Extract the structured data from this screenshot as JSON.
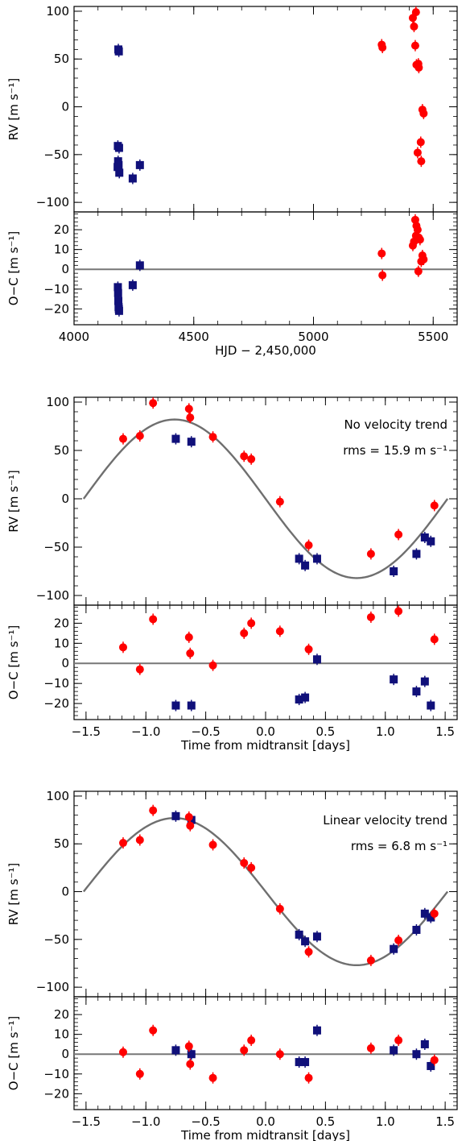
{
  "chart_data": [
    {
      "type": "scatter",
      "panel": "rv",
      "xlim": [
        4000,
        5600
      ],
      "ylim": [
        -110,
        105
      ],
      "yticks": [
        -100,
        -50,
        0,
        50,
        100
      ],
      "ylabel": "RV [m s⁻¹]",
      "annotations": [],
      "fit_curve": false,
      "series": [
        {
          "color": "#10107a",
          "marker": "square",
          "x": [
            4185,
            4187,
            4183,
            4188,
            4184,
            4186,
            4182,
            4189,
            4245,
            4275
          ],
          "y": [
            60,
            58,
            -41,
            -43,
            -57,
            -61,
            -63,
            -69,
            -75,
            -61
          ]
        },
        {
          "color": "#ff0000",
          "marker": "circle",
          "x": [
            5285,
            5288,
            5415,
            5428,
            5420,
            5425,
            5430,
            5440,
            5455,
            5460,
            5448,
            5435,
            5450,
            5438
          ],
          "y": [
            65,
            62,
            93,
            99,
            84,
            64,
            44,
            41,
            -3,
            -7,
            -37,
            -48,
            -57,
            45
          ]
        }
      ]
    },
    {
      "type": "scatter",
      "panel": "residuals",
      "xlim": [
        4000,
        5600
      ],
      "ylim": [
        -28,
        29
      ],
      "xticks": [
        4000,
        4500,
        5000,
        5500
      ],
      "yticks": [
        -20,
        -10,
        0,
        10,
        20
      ],
      "xlabel": "HJD − 2,450,000",
      "ylabel": "O−C [m s⁻¹]",
      "series": [
        {
          "color": "#10107a",
          "marker": "square",
          "x": [
            4183,
            4184,
            4185,
            4186,
            4187,
            4188,
            4245,
            4275
          ],
          "y": [
            -9,
            -12,
            -16,
            -19,
            -20,
            -21,
            -8,
            2
          ]
        },
        {
          "color": "#ff0000",
          "marker": "circle",
          "x": [
            5285,
            5288,
            5415,
            5420,
            5425,
            5428,
            5430,
            5435,
            5440,
            5445,
            5450,
            5455,
            5460,
            5438
          ],
          "y": [
            8,
            -3,
            12,
            14,
            25,
            17,
            22,
            20,
            16,
            15,
            4,
            7,
            5,
            -1
          ]
        }
      ]
    },
    {
      "type": "scatter",
      "panel": "rv",
      "xlim": [
        -1.6,
        1.6
      ],
      "ylim": [
        -110,
        105
      ],
      "yticks": [
        -100,
        -50,
        0,
        50,
        100
      ],
      "ylabel": "RV [m s⁻¹]",
      "annotations": [
        "No velocity trend",
        "rms = 15.9 m s⁻¹"
      ],
      "fit_curve": true,
      "fit_amplitude": 82,
      "fit_period": 3.04,
      "series": [
        {
          "color": "#10107a",
          "marker": "square",
          "x": [
            -0.75,
            -0.62,
            0.28,
            0.33,
            0.43,
            1.07,
            1.26,
            1.33,
            1.38
          ],
          "y": [
            62,
            59,
            -62,
            -69,
            -62,
            -75,
            -57,
            -40,
            -44
          ]
        },
        {
          "color": "#ff0000",
          "marker": "circle",
          "x": [
            -1.19,
            -1.05,
            -0.94,
            -0.64,
            -0.63,
            -0.44,
            -0.18,
            -0.12,
            0.12,
            0.36,
            0.88,
            1.11,
            1.41
          ],
          "y": [
            62,
            65,
            99,
            93,
            84,
            64,
            44,
            41,
            -3,
            -48,
            -57,
            -37,
            -7
          ]
        }
      ]
    },
    {
      "type": "scatter",
      "panel": "residuals",
      "xlim": [
        -1.6,
        1.6
      ],
      "ylim": [
        -28,
        29
      ],
      "xticks": [
        -1.5,
        -1.0,
        -0.5,
        0.0,
        0.5,
        1.0,
        1.5
      ],
      "yticks": [
        -20,
        -10,
        0,
        10,
        20
      ],
      "xlabel": "Time from midtransit [days]",
      "ylabel": "O−C [m s⁻¹]",
      "series": [
        {
          "color": "#10107a",
          "marker": "square",
          "x": [
            -0.75,
            -0.62,
            0.28,
            0.33,
            0.43,
            1.07,
            1.26,
            1.33,
            1.38
          ],
          "y": [
            -21,
            -21,
            -18,
            -17,
            2,
            -8,
            -14,
            -9,
            -21
          ]
        },
        {
          "color": "#ff0000",
          "marker": "circle",
          "x": [
            -1.19,
            -1.05,
            -0.94,
            -0.64,
            -0.63,
            -0.44,
            -0.18,
            -0.12,
            0.12,
            0.36,
            0.88,
            1.11,
            1.41
          ],
          "y": [
            8,
            -3,
            22,
            13,
            5,
            -1,
            15,
            20,
            16,
            7,
            23,
            26,
            12
          ]
        }
      ]
    },
    {
      "type": "scatter",
      "panel": "rv",
      "xlim": [
        -1.6,
        1.6
      ],
      "ylim": [
        -110,
        105
      ],
      "yticks": [
        -100,
        -50,
        0,
        50,
        100
      ],
      "ylabel": "RV [m s⁻¹]",
      "annotations": [
        "Linear velocity trend",
        "rms = 6.8 m s⁻¹"
      ],
      "fit_curve": true,
      "fit_amplitude": 77,
      "fit_period": 3.04,
      "series": [
        {
          "color": "#10107a",
          "marker": "square",
          "x": [
            -0.75,
            -0.62,
            0.28,
            0.33,
            0.43,
            1.07,
            1.26,
            1.33,
            1.38
          ],
          "y": [
            79,
            75,
            -45,
            -52,
            -47,
            -60,
            -40,
            -23,
            -27
          ]
        },
        {
          "color": "#ff0000",
          "marker": "circle",
          "x": [
            -1.19,
            -1.05,
            -0.94,
            -0.64,
            -0.63,
            -0.44,
            -0.18,
            -0.12,
            0.12,
            0.36,
            0.88,
            1.11,
            1.41
          ],
          "y": [
            51,
            54,
            85,
            78,
            69,
            49,
            30,
            25,
            -18,
            -63,
            -72,
            -51,
            -23
          ]
        }
      ]
    },
    {
      "type": "scatter",
      "panel": "residuals",
      "xlim": [
        -1.6,
        1.6
      ],
      "ylim": [
        -28,
        29
      ],
      "xticks": [
        -1.5,
        -1.0,
        -0.5,
        0.0,
        0.5,
        1.0,
        1.5
      ],
      "yticks": [
        -20,
        -10,
        0,
        10,
        20
      ],
      "xlabel": "Time from midtransit [days]",
      "ylabel": "O−C [m s⁻¹]",
      "series": [
        {
          "color": "#10107a",
          "marker": "square",
          "x": [
            -0.75,
            -0.62,
            0.28,
            0.33,
            0.43,
            1.07,
            1.26,
            1.33,
            1.38
          ],
          "y": [
            2,
            0,
            -4,
            -4,
            12,
            2,
            0,
            5,
            -6
          ]
        },
        {
          "color": "#ff0000",
          "marker": "circle",
          "x": [
            -1.19,
            -1.05,
            -0.94,
            -0.64,
            -0.63,
            -0.44,
            -0.18,
            -0.12,
            0.12,
            0.36,
            0.88,
            1.11,
            1.41
          ],
          "y": [
            1,
            -10,
            12,
            4,
            -5,
            -12,
            2,
            7,
            0,
            -12,
            3,
            7,
            -3
          ]
        }
      ]
    }
  ]
}
